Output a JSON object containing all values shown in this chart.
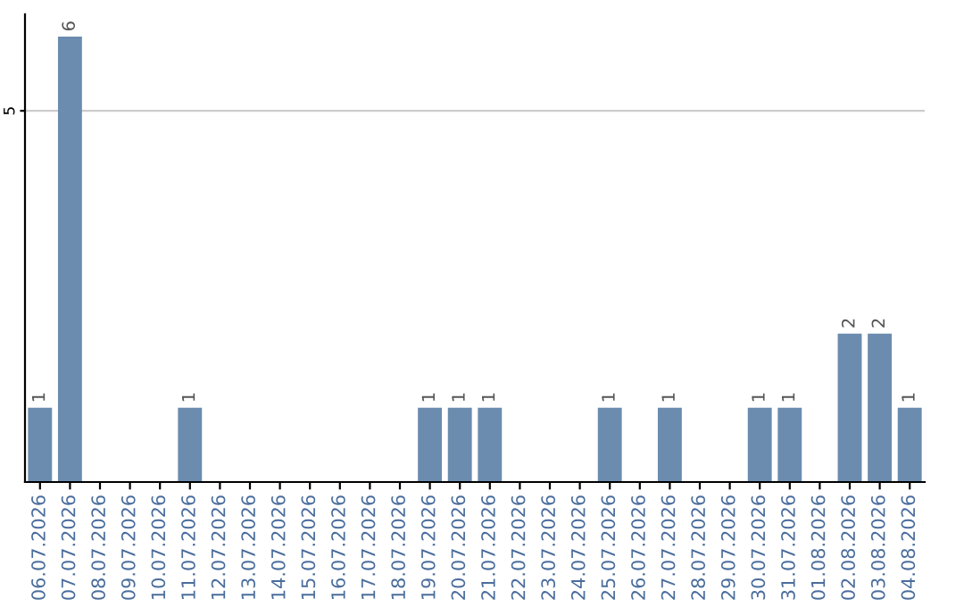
{
  "chart_data": {
    "type": "bar",
    "categories": [
      "06.07.2026",
      "07.07.2026",
      "08.07.2026",
      "09.07.2026",
      "10.07.2026",
      "11.07.2026",
      "12.07.2026",
      "13.07.2026",
      "14.07.2026",
      "15.07.2026",
      "16.07.2026",
      "17.07.2026",
      "18.07.2026",
      "19.07.2026",
      "20.07.2026",
      "21.07.2026",
      "22.07.2026",
      "23.07.2026",
      "24.07.2026",
      "25.07.2026",
      "26.07.2026",
      "27.07.2026",
      "28.07.2026",
      "29.07.2026",
      "30.07.2026",
      "31.07.2026",
      "01.08.2026",
      "02.08.2026",
      "03.08.2026",
      "04.08.2026"
    ],
    "values": [
      1,
      6,
      0,
      0,
      0,
      1,
      0,
      0,
      0,
      0,
      0,
      0,
      0,
      1,
      1,
      1,
      0,
      0,
      0,
      1,
      0,
      1,
      0,
      0,
      1,
      1,
      0,
      2,
      2,
      1
    ],
    "value_labels": [
      "1",
      "6",
      null,
      null,
      null,
      "1",
      null,
      null,
      null,
      null,
      null,
      null,
      null,
      "1",
      "1",
      "1",
      null,
      null,
      null,
      "1",
      null,
      "1",
      null,
      null,
      "1",
      "1",
      null,
      "2",
      "2",
      "1"
    ],
    "color": "#6b8cae",
    "ylim": [
      0,
      6.3
    ],
    "yticks": [
      5
    ],
    "grid": "y"
  }
}
